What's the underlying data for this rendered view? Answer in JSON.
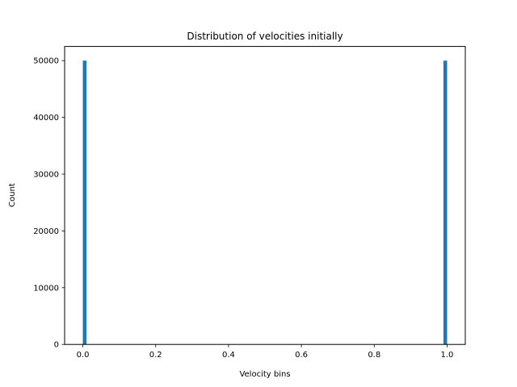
{
  "chart_data": {
    "type": "bar",
    "title": "Distribution of velocities initially",
    "xlabel": "Velocity bins",
    "ylabel": "Count",
    "xlim": [
      -0.05,
      1.05
    ],
    "ylim": [
      0,
      52500
    ],
    "xticks": [
      0.0,
      0.2,
      0.4,
      0.6,
      0.8,
      1.0
    ],
    "xtick_labels": [
      "0.0",
      "0.2",
      "0.4",
      "0.6",
      "0.8",
      "1.0"
    ],
    "yticks": [
      0,
      10000,
      20000,
      30000,
      40000,
      50000
    ],
    "ytick_labels": [
      "0",
      "10000",
      "20000",
      "30000",
      "40000",
      "50000"
    ],
    "bar_width": 0.01,
    "bars": [
      {
        "x": 0.0,
        "value": 50000
      },
      {
        "x": 0.99,
        "value": 50000
      }
    ],
    "grid": false,
    "bar_color": "#1f77b4"
  }
}
